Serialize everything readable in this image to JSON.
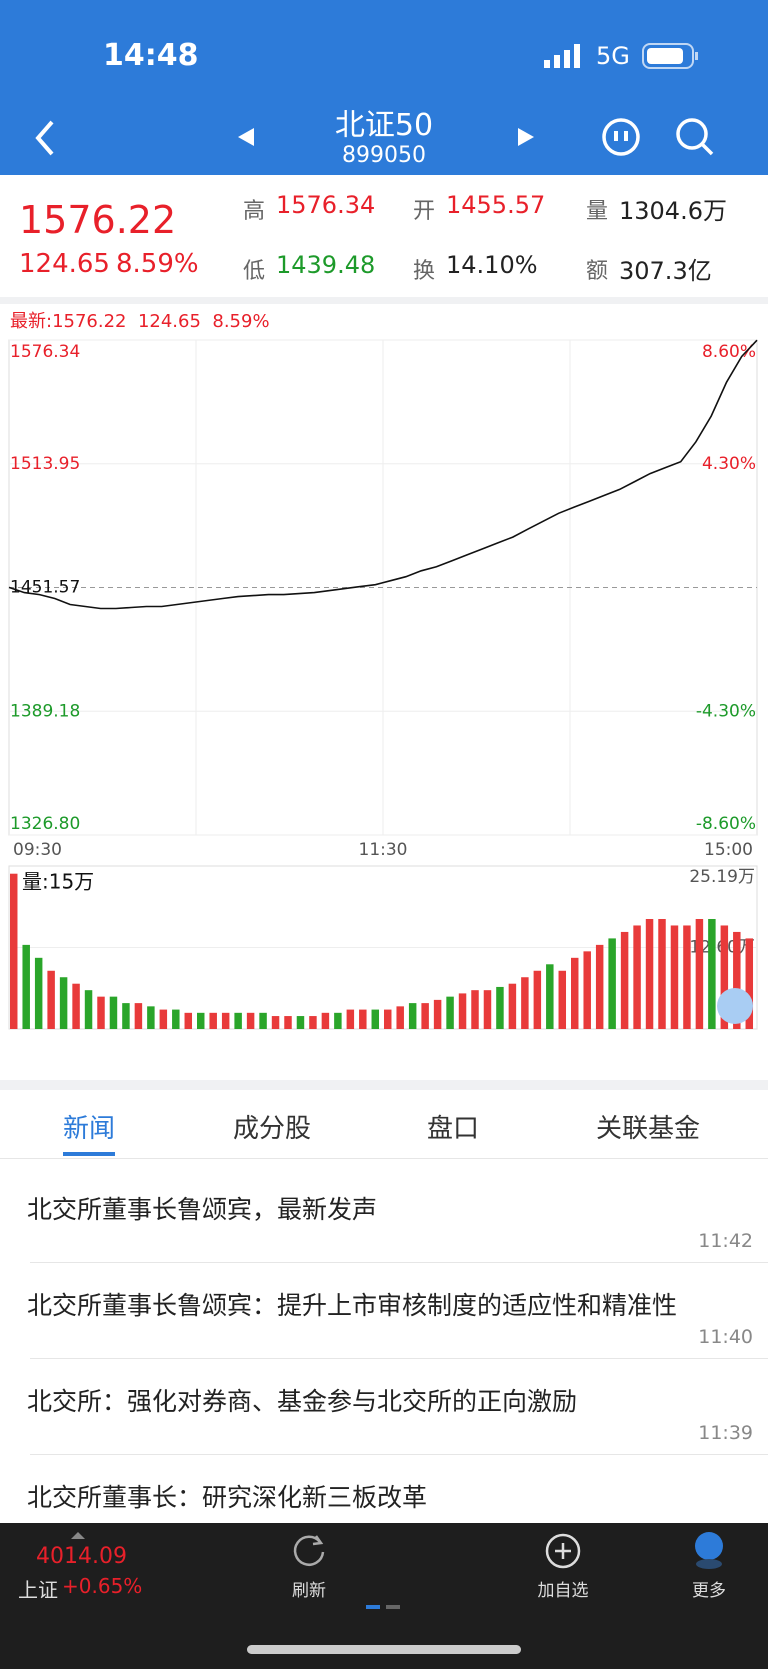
{
  "status_bar": {
    "time": "14:48",
    "network": "5G"
  },
  "nav": {
    "title": "北证50",
    "code": "899050"
  },
  "quote": {
    "price": "1576.22",
    "change": "124.65",
    "change_pct": "8.59%",
    "stats": [
      {
        "label": "高",
        "value": "1576.34"
      },
      {
        "label": "开",
        "value": "1455.57"
      },
      {
        "label": "量",
        "value": "1304.6万"
      },
      {
        "label": "低",
        "value": "1439.48"
      },
      {
        "label": "换",
        "value": "14.10%"
      },
      {
        "label": "额",
        "value": "307.3亿"
      }
    ]
  },
  "chart": {
    "latest_label": "最新:1576.22  124.65  8.59%",
    "ylim": [
      {
        "value": 1326.8,
        "label": "1326.80"
      },
      1576.34
    ],
    "yticks": [
      {
        "value": 1326.8,
        "label": "1326.80"
      },
      1389.18,
      1451.57,
      1513.95,
      1576.34
    ],
    "pct_ticks": [
      {
        "value": 1326.8,
        "label": "-8.60%"
      },
      {
        "value": 1389.18,
        "label": "-4.30%"
      },
      {
        "value": 1513.95,
        "label": "4.30%"
      },
      {
        "value": 1576.34,
        "label": "8.60%"
      }
    ],
    "prev_close": 1451.57,
    "x_labels": [
      "09:30",
      "11:30",
      "15:00"
    ],
    "values": [
      1451.6,
      1449,
      1448,
      1446,
      1443,
      1442,
      1441,
      1441,
      1441.5,
      1442,
      1442,
      1443,
      1444,
      1445,
      1446,
      1447,
      1447.5,
      1448,
      1448,
      1448.5,
      1449,
      1450,
      1451,
      1452,
      1453,
      1455,
      1457,
      1460,
      1462,
      1465,
      1468,
      1471,
      1474,
      1477,
      1481,
      1485,
      1489,
      1492,
      1495,
      1498,
      1501,
      1505,
      1509,
      1512,
      1515,
      1525,
      1538,
      1555,
      1568,
      1576.22
    ],
    "line_color": "#111111"
  },
  "volume": {
    "label": "量:15万",
    "ylim": [
      0,
      25.19
    ],
    "yticks": [
      {
        "value": 25.19,
        "label": "25.19万"
      },
      {
        "value": 12.6,
        "label": "12.60万"
      }
    ],
    "values": [
      24,
      13,
      11,
      9,
      8,
      7,
      6,
      5,
      5,
      4,
      4,
      3.5,
      3,
      3,
      2.5,
      2.5,
      2.5,
      2.5,
      2.5,
      2.5,
      2.5,
      2,
      2,
      2,
      2,
      2.5,
      2.5,
      3,
      3,
      3,
      3,
      3.5,
      4,
      4,
      4.5,
      5,
      5.5,
      6,
      6,
      6.5,
      7,
      8,
      9,
      10,
      9,
      11,
      12,
      13,
      14,
      15,
      16,
      17,
      17,
      16,
      16,
      17,
      17,
      16,
      15,
      14
    ],
    "up": [
      true,
      false,
      false,
      true,
      false,
      true,
      false,
      true,
      false,
      false,
      true,
      false,
      true,
      false,
      true,
      false,
      true,
      true,
      false,
      true,
      false,
      true,
      true,
      false,
      true,
      true,
      false,
      true,
      true,
      false,
      true,
      true,
      false,
      true,
      true,
      false,
      true,
      true,
      true,
      false,
      true,
      true,
      true,
      false,
      true,
      true,
      true,
      true,
      false,
      true,
      true,
      true,
      true,
      true,
      true,
      true,
      false,
      true,
      true,
      true
    ],
    "up_color": "#e83a3a",
    "down_color": "#2aa52a"
  },
  "tabs": [
    "新闻",
    "成分股",
    "盘口",
    "关联基金"
  ],
  "news": [
    {
      "title": "北交所董事长鲁颂宾，最新发声",
      "time": "11:42"
    },
    {
      "title": "北交所董事长鲁颂宾：提升上市审核制度的适应性和精准性",
      "time": "11:40"
    },
    {
      "title": "北交所：强化对券商、基金参与北交所的正向激励",
      "time": "11:39"
    },
    {
      "title": "北交所董事长：研究深化新三板改革"
    }
  ],
  "bottom_bar": {
    "index_value": "4014.09",
    "index_name": "上证",
    "index_change": "+0.65%",
    "buttons": [
      "刷新",
      "加自选",
      "更多"
    ]
  }
}
